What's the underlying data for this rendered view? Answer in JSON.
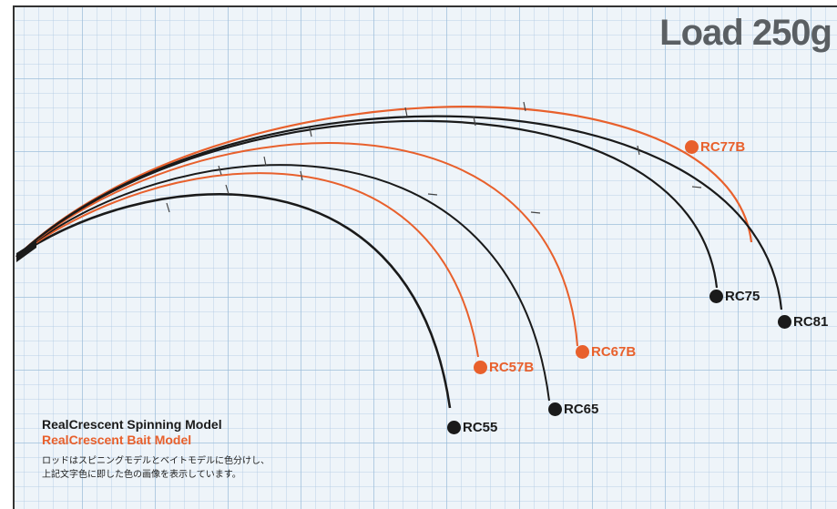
{
  "title": "Load 250g",
  "legend": {
    "spinning_model": "RealCrescent Spinning Model",
    "bait_model": "RealCrescent Bait Model",
    "note_line1": "ロッドはスピニングモデルとベイトモデルに色分けし、",
    "note_line2": "上記文字色に即した色の画像を表示しています。"
  },
  "colors": {
    "spinning": "#1a1a1a",
    "bait": "#e8602c"
  },
  "rods": [
    {
      "id": "rc55",
      "label": "RC55",
      "type": "spinning"
    },
    {
      "id": "rc57b",
      "label": "RC57B",
      "type": "bait"
    },
    {
      "id": "rc65",
      "label": "RC65",
      "type": "spinning"
    },
    {
      "id": "rc67b",
      "label": "RC67B",
      "type": "bait"
    },
    {
      "id": "rc75",
      "label": "RC75",
      "type": "spinning"
    },
    {
      "id": "rc77b",
      "label": "RC77B",
      "type": "bait"
    },
    {
      "id": "rc81",
      "label": "RC81",
      "type": "spinning"
    }
  ]
}
